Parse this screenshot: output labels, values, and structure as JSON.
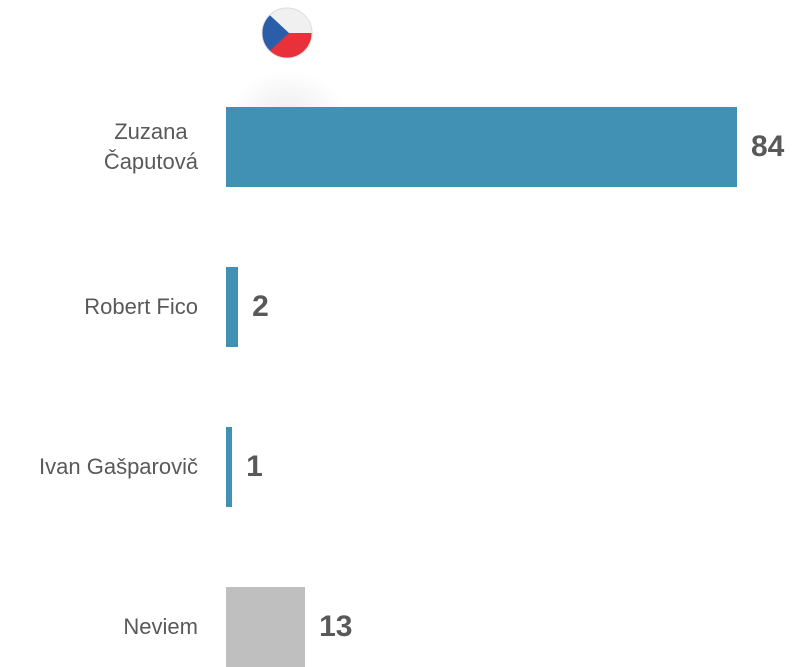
{
  "chart_data": {
    "type": "bar",
    "orientation": "horizontal",
    "categories": [
      "Zuzana\nČaputová",
      "Robert Fico",
      "Ivan Gašparovič",
      "Neviem"
    ],
    "values": [
      84,
      2,
      1,
      13
    ],
    "colors": [
      "#4191b4",
      "#4191b4",
      "#4191b4",
      "#bfbfbf"
    ]
  }
}
